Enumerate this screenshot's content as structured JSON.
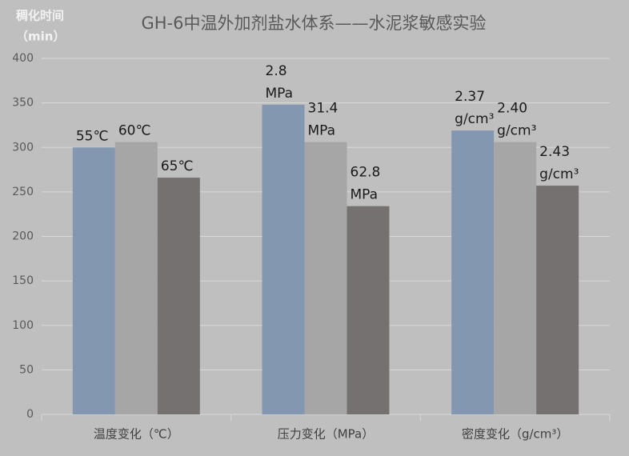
{
  "chart_data": {
    "type": "bar",
    "title": "GH-6中温外加剂盐水体系——水泥浆敏感实验",
    "y_label": [
      "稠化时间",
      "（min）"
    ],
    "categories": [
      "温度变化（℃）",
      "压力变化（MPa）",
      "密度变化（g/cm³）"
    ],
    "series": [
      {
        "color": "#8497b0",
        "values": [
          300,
          348,
          319
        ],
        "labels": [
          [
            "55℃"
          ],
          [
            "2.8",
            "MPa"
          ],
          [
            "2.37",
            "g/cm³"
          ]
        ]
      },
      {
        "color": "#a6a6a6",
        "values": [
          306,
          306,
          306
        ],
        "labels": [
          [
            "60℃"
          ],
          [
            "31.4",
            "MPa"
          ],
          [
            "2.40",
            "g/cm³"
          ]
        ]
      },
      {
        "color": "#767171",
        "values": [
          266,
          234,
          257
        ],
        "labels": [
          [
            "65℃"
          ],
          [
            "62.8",
            "MPa"
          ],
          [
            "2.43",
            "g/cm³"
          ]
        ]
      }
    ],
    "ylim": [
      0,
      400
    ],
    "yticks": [
      0,
      50,
      100,
      150,
      200,
      250,
      300,
      350,
      400
    ],
    "grid": true
  }
}
